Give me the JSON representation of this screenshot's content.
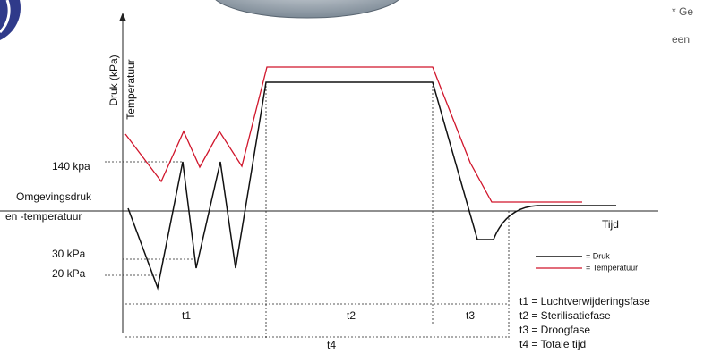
{
  "corner_note": {
    "line1": "* Ge",
    "line2": "een"
  },
  "axes": {
    "y_label_1": "Druk (kPa)",
    "y_label_2": "Temperatuur",
    "x_label": "Tijd"
  },
  "levels": {
    "high": "140 kpa",
    "ambient_1": "Omgevingsdruk",
    "ambient_2": "en -temperatuur",
    "mid": "30 kPa",
    "low": "20 kPa"
  },
  "legend": {
    "pressure": "= Druk",
    "temperature": "= Temperatuur"
  },
  "phases": {
    "t1": "t1",
    "t2": "t2",
    "t3": "t3",
    "t4": "t4"
  },
  "phase_key": [
    "t1 = Luchtverwijderingsfase",
    "t2 = Sterilisatiefase",
    "t3 = Droogfase",
    "t4 = Totale tijd"
  ]
}
